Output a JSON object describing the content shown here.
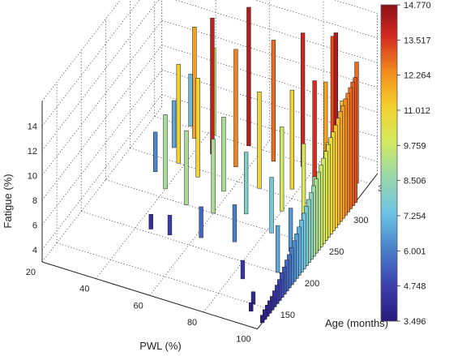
{
  "chart_data": {
    "type": "bar3d",
    "zlabel": "Fatigue (%)",
    "xlabel": "PWL (%)",
    "ylabel": "Age (months)",
    "x_ticks": [
      20,
      40,
      60,
      80,
      100
    ],
    "y_ticks": [
      150,
      200,
      250,
      300,
      350
    ],
    "z_ticks": [
      4,
      6,
      8,
      10,
      12,
      14
    ],
    "xlim": [
      20,
      100
    ],
    "ylim": [
      120,
      365
    ],
    "zlim": [
      3,
      16
    ],
    "grid": true,
    "colormap": "jet",
    "colorbar": {
      "min": 3.496,
      "max": 14.77,
      "tick_labels": [
        "14.770",
        "13.517",
        "12.264",
        "11.012",
        "9.759",
        "8.506",
        "7.254",
        "6.001",
        "4.748",
        "3.496"
      ]
    },
    "points": [
      {
        "x": 33,
        "y": 352,
        "z": 7.2
      },
      {
        "x": 33,
        "y": 318,
        "z": 6.8
      },
      {
        "x": 33,
        "y": 280,
        "z": 6.2
      },
      {
        "x": 37,
        "y": 338,
        "z": 12.0
      },
      {
        "x": 38,
        "y": 300,
        "z": 11.0
      },
      {
        "x": 40,
        "y": 262,
        "z": 9.0
      },
      {
        "x": 42,
        "y": 350,
        "z": 10.0
      },
      {
        "x": 45,
        "y": 205,
        "z": 4.2
      },
      {
        "x": 46,
        "y": 325,
        "z": 14.0
      },
      {
        "x": 47,
        "y": 290,
        "z": 11.0
      },
      {
        "x": 50,
        "y": 250,
        "z": 9.0
      },
      {
        "x": 52,
        "y": 205,
        "z": 4.6
      },
      {
        "x": 55,
        "y": 350,
        "z": 14.2
      },
      {
        "x": 56,
        "y": 318,
        "z": 12.5
      },
      {
        "x": 58,
        "y": 282,
        "z": 9.0
      },
      {
        "x": 60,
        "y": 250,
        "z": 9.0
      },
      {
        "x": 62,
        "y": 214,
        "z": 5.5
      },
      {
        "x": 66,
        "y": 340,
        "z": 12.8
      },
      {
        "x": 68,
        "y": 300,
        "z": 10.8
      },
      {
        "x": 70,
        "y": 262,
        "z": 8.0
      },
      {
        "x": 73,
        "y": 222,
        "z": 6.0
      },
      {
        "x": 76,
        "y": 345,
        "z": 13.8
      },
      {
        "x": 78,
        "y": 312,
        "z": 11.0
      },
      {
        "x": 80,
        "y": 280,
        "z": 9.8
      },
      {
        "x": 82,
        "y": 248,
        "z": 7.5
      },
      {
        "x": 84,
        "y": 178,
        "z": 4.5
      },
      {
        "x": 84,
        "y": 362,
        "z": 13.2
      },
      {
        "x": 87,
        "y": 352,
        "z": 14.2
      },
      {
        "x": 89,
        "y": 320,
        "z": 12.0
      },
      {
        "x": 90,
        "y": 292,
        "z": 13.6
      },
      {
        "x": 91,
        "y": 264,
        "z": 10.0
      },
      {
        "x": 92,
        "y": 232,
        "z": 6.5
      },
      {
        "x": 93,
        "y": 200,
        "z": 6.8
      },
      {
        "x": 93,
        "y": 150,
        "z": 4.0
      },
      {
        "x": 94,
        "y": 140,
        "z": 3.7
      },
      {
        "x": 96,
        "y": 345,
        "z": 12.8
      },
      {
        "x": 97,
        "y": 310,
        "z": 11.5
      },
      {
        "x": 98,
        "y": 275,
        "z": 10.0
      },
      {
        "x": 99,
        "y": 242,
        "z": 9.0
      },
      {
        "x": 100,
        "y": 130,
        "z": 3.6
      },
      {
        "x": 100,
        "y": 135,
        "z": 3.8
      },
      {
        "x": 100,
        "y": 140,
        "z": 3.9
      },
      {
        "x": 100,
        "y": 145,
        "z": 4.0
      },
      {
        "x": 100,
        "y": 150,
        "z": 4.1
      },
      {
        "x": 100,
        "y": 155,
        "z": 4.3
      },
      {
        "x": 100,
        "y": 160,
        "z": 4.5
      },
      {
        "x": 100,
        "y": 165,
        "z": 4.7
      },
      {
        "x": 100,
        "y": 170,
        "z": 5.0
      },
      {
        "x": 100,
        "y": 175,
        "z": 5.2
      },
      {
        "x": 100,
        "y": 180,
        "z": 5.5
      },
      {
        "x": 100,
        "y": 185,
        "z": 5.7
      },
      {
        "x": 100,
        "y": 190,
        "z": 6.0
      },
      {
        "x": 100,
        "y": 195,
        "z": 6.3
      },
      {
        "x": 100,
        "y": 200,
        "z": 6.6
      },
      {
        "x": 100,
        "y": 205,
        "z": 6.9
      },
      {
        "x": 100,
        "y": 210,
        "z": 7.2
      },
      {
        "x": 100,
        "y": 215,
        "z": 7.5
      },
      {
        "x": 100,
        "y": 220,
        "z": 7.8
      },
      {
        "x": 100,
        "y": 225,
        "z": 8.1
      },
      {
        "x": 100,
        "y": 230,
        "z": 8.4
      },
      {
        "x": 100,
        "y": 235,
        "z": 8.7
      },
      {
        "x": 100,
        "y": 240,
        "z": 9.0
      },
      {
        "x": 100,
        "y": 245,
        "z": 9.3
      },
      {
        "x": 100,
        "y": 250,
        "z": 9.6
      },
      {
        "x": 100,
        "y": 255,
        "z": 9.9
      },
      {
        "x": 100,
        "y": 260,
        "z": 10.2
      },
      {
        "x": 100,
        "y": 265,
        "z": 10.5
      },
      {
        "x": 100,
        "y": 270,
        "z": 10.8
      },
      {
        "x": 100,
        "y": 275,
        "z": 11.0
      },
      {
        "x": 100,
        "y": 280,
        "z": 11.3
      },
      {
        "x": 100,
        "y": 285,
        "z": 11.6
      },
      {
        "x": 100,
        "y": 290,
        "z": 11.9
      },
      {
        "x": 100,
        "y": 295,
        "z": 12.1
      },
      {
        "x": 100,
        "y": 300,
        "z": 12.4
      },
      {
        "x": 100,
        "y": 305,
        "z": 12.6
      },
      {
        "x": 100,
        "y": 310,
        "z": 12.8
      },
      {
        "x": 100,
        "y": 315,
        "z": 13.0
      },
      {
        "x": 100,
        "y": 320,
        "z": 13.1
      }
    ]
  }
}
